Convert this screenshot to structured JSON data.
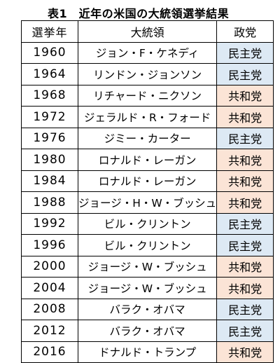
{
  "title": "表1　近年の米国の大統領選挙結果",
  "headers": {
    "year": "選挙年",
    "president": "大統領",
    "party": "政党"
  },
  "party_colors": {
    "民主党": "#dde9f4",
    "共和党": "#fbe4d6"
  },
  "rows": [
    {
      "year": "1960",
      "president": "ジョン・F・ケネディ",
      "party": "民主党"
    },
    {
      "year": "1964",
      "president": "リンドン・ジョンソン",
      "party": "民主党"
    },
    {
      "year": "1968",
      "president": "リチャード・ニクソン",
      "party": "共和党"
    },
    {
      "year": "1972",
      "president": "ジェラルド・R・フォード",
      "party": "共和党"
    },
    {
      "year": "1976",
      "president": "ジミー・カーター",
      "party": "民主党"
    },
    {
      "year": "1980",
      "president": "ロナルド・レーガン",
      "party": "共和党"
    },
    {
      "year": "1984",
      "president": "ロナルド・レーガン",
      "party": "共和党"
    },
    {
      "year": "1988",
      "president": "ジョージ・H・W・ブッシュ",
      "party": "共和党"
    },
    {
      "year": "1992",
      "president": "ビル・クリントン",
      "party": "民主党"
    },
    {
      "year": "1996",
      "president": "ビル・クリントン",
      "party": "民主党"
    },
    {
      "year": "2000",
      "president": "ジョージ・W・ブッシュ",
      "party": "共和党"
    },
    {
      "year": "2004",
      "president": "ジョージ・W・ブッシュ",
      "party": "共和党"
    },
    {
      "year": "2008",
      "president": "バラク・オバマ",
      "party": "民主党"
    },
    {
      "year": "2012",
      "president": "バラク・オバマ",
      "party": "民主党"
    },
    {
      "year": "2016",
      "president": "ドナルド・トランプ",
      "party": "共和党"
    }
  ]
}
